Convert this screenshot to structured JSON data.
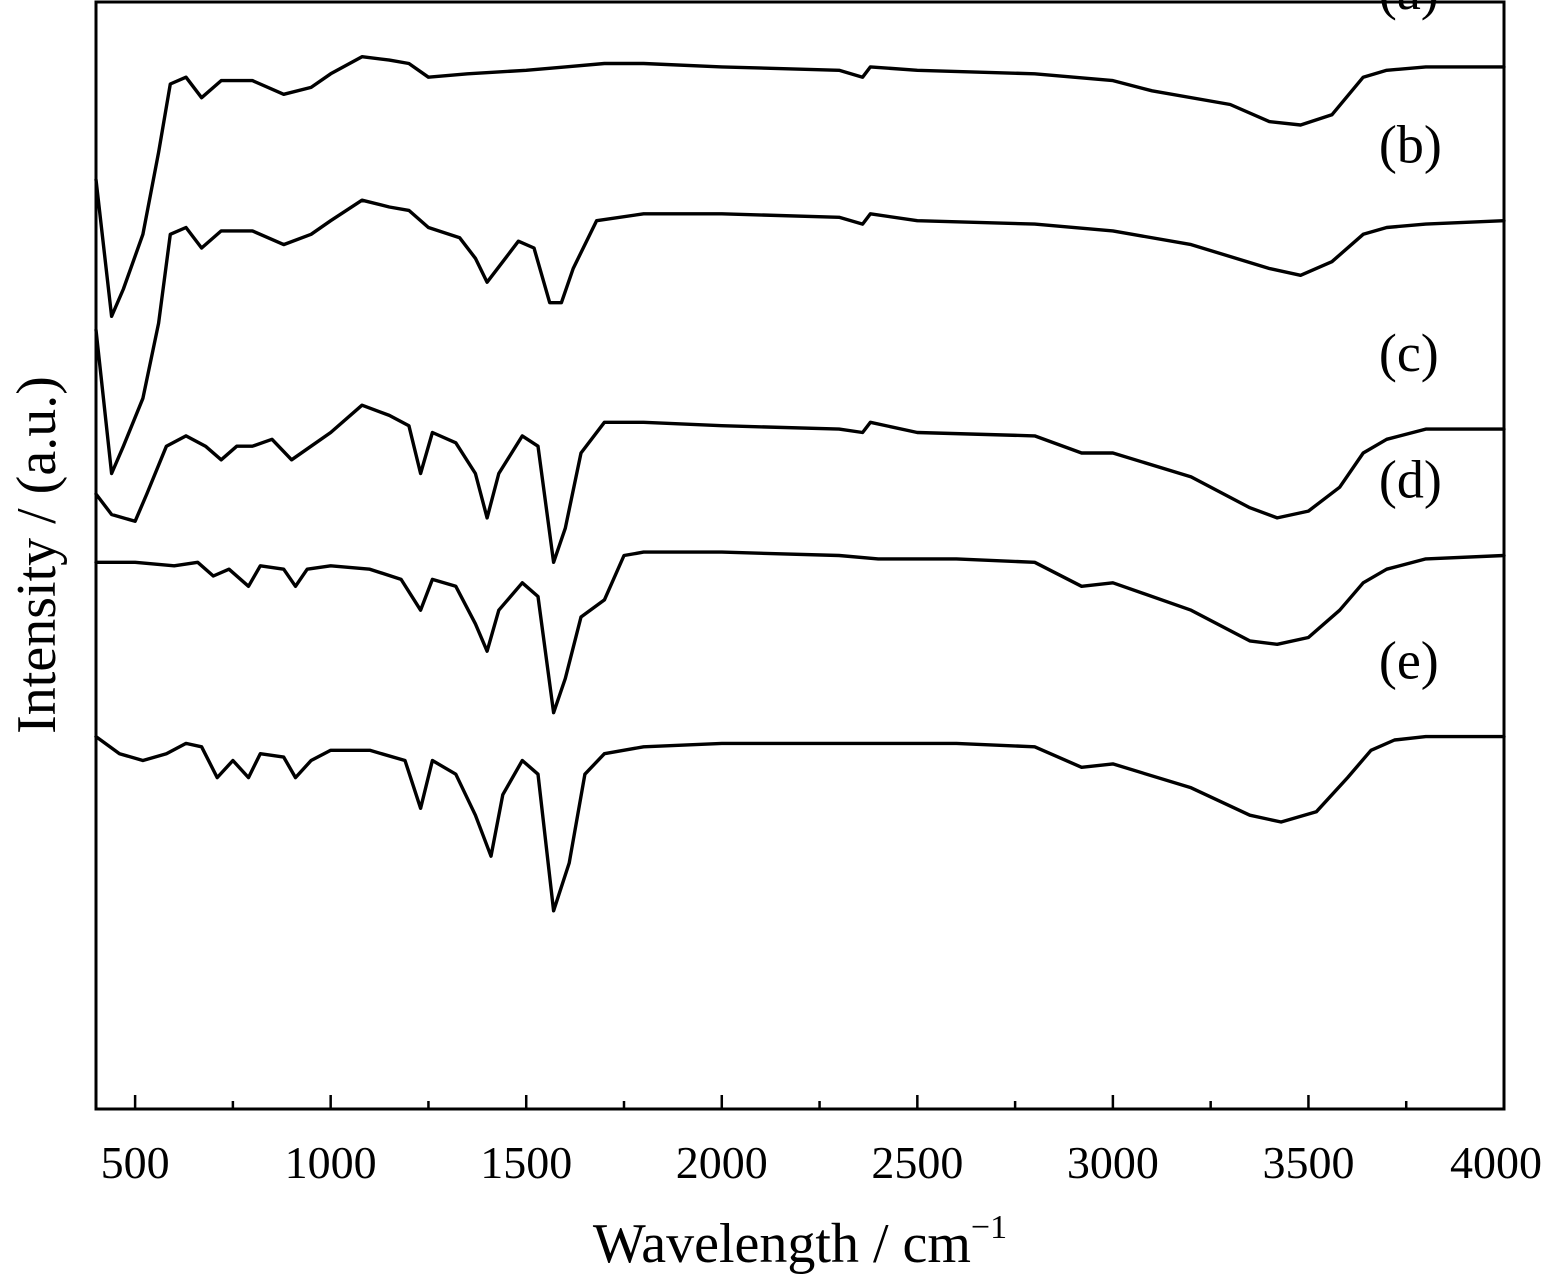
{
  "chart_data": {
    "type": "line",
    "xlabel": "Wavelength / cm",
    "xlabel_sup": "−1",
    "ylabel": "Intensity / (a.u.)",
    "xlim": [
      400,
      4000
    ],
    "ylim": [
      -16.2,
      0
    ],
    "x_ticks": [
      500,
      1000,
      1500,
      2000,
      2500,
      3000,
      3500,
      4000
    ],
    "x_tick_labels": [
      "500",
      "1000",
      "1500",
      "2000",
      "2500",
      "3000",
      "3500",
      "4000"
    ],
    "x_minor_ticks": [
      750,
      1250,
      1750,
      2250,
      2750,
      3250,
      3750
    ],
    "y_ticks_visible": false,
    "grid": false,
    "legend": "none",
    "color": "#000000",
    "series": [
      {
        "name": "(a)",
        "points": [
          [
            400,
            -2.6
          ],
          [
            440,
            -4.6
          ],
          [
            470,
            -4.2
          ],
          [
            520,
            -3.4
          ],
          [
            560,
            -2.2
          ],
          [
            590,
            -1.2
          ],
          [
            630,
            -1.1
          ],
          [
            670,
            -1.4
          ],
          [
            720,
            -1.15
          ],
          [
            800,
            -1.15
          ],
          [
            880,
            -1.35
          ],
          [
            950,
            -1.25
          ],
          [
            1000,
            -1.05
          ],
          [
            1080,
            -0.8
          ],
          [
            1150,
            -0.85
          ],
          [
            1200,
            -0.9
          ],
          [
            1250,
            -1.1
          ],
          [
            1350,
            -1.05
          ],
          [
            1500,
            -1.0
          ],
          [
            1600,
            -0.95
          ],
          [
            1700,
            -0.9
          ],
          [
            1800,
            -0.9
          ],
          [
            2000,
            -0.95
          ],
          [
            2300,
            -1.0
          ],
          [
            2360,
            -1.1
          ],
          [
            2380,
            -0.95
          ],
          [
            2500,
            -1.0
          ],
          [
            2800,
            -1.05
          ],
          [
            3000,
            -1.15
          ],
          [
            3100,
            -1.3
          ],
          [
            3300,
            -1.5
          ],
          [
            3400,
            -1.75
          ],
          [
            3480,
            -1.8
          ],
          [
            3560,
            -1.65
          ],
          [
            3640,
            -1.1
          ],
          [
            3700,
            -1.0
          ],
          [
            3800,
            -0.95
          ],
          [
            4000,
            -0.95
          ]
        ]
      },
      {
        "name": "(b)",
        "points": [
          [
            400,
            -4.8
          ],
          [
            440,
            -6.9
          ],
          [
            470,
            -6.5
          ],
          [
            520,
            -5.8
          ],
          [
            560,
            -4.7
          ],
          [
            590,
            -3.4
          ],
          [
            630,
            -3.3
          ],
          [
            670,
            -3.6
          ],
          [
            720,
            -3.35
          ],
          [
            800,
            -3.35
          ],
          [
            880,
            -3.55
          ],
          [
            950,
            -3.4
          ],
          [
            1000,
            -3.2
          ],
          [
            1080,
            -2.9
          ],
          [
            1150,
            -3.0
          ],
          [
            1200,
            -3.05
          ],
          [
            1250,
            -3.3
          ],
          [
            1330,
            -3.45
          ],
          [
            1370,
            -3.75
          ],
          [
            1400,
            -4.1
          ],
          [
            1440,
            -3.8
          ],
          [
            1480,
            -3.5
          ],
          [
            1520,
            -3.6
          ],
          [
            1560,
            -4.4
          ],
          [
            1590,
            -4.4
          ],
          [
            1620,
            -3.9
          ],
          [
            1680,
            -3.2
          ],
          [
            1800,
            -3.1
          ],
          [
            2000,
            -3.1
          ],
          [
            2300,
            -3.15
          ],
          [
            2360,
            -3.25
          ],
          [
            2380,
            -3.1
          ],
          [
            2500,
            -3.2
          ],
          [
            2800,
            -3.25
          ],
          [
            3000,
            -3.35
          ],
          [
            3200,
            -3.55
          ],
          [
            3400,
            -3.9
          ],
          [
            3480,
            -4.0
          ],
          [
            3560,
            -3.8
          ],
          [
            3640,
            -3.4
          ],
          [
            3700,
            -3.3
          ],
          [
            3800,
            -3.25
          ],
          [
            4000,
            -3.2
          ]
        ]
      },
      {
        "name": "(c)",
        "points": [
          [
            400,
            -7.2
          ],
          [
            440,
            -7.5
          ],
          [
            500,
            -7.6
          ],
          [
            530,
            -7.2
          ],
          [
            580,
            -6.5
          ],
          [
            630,
            -6.35
          ],
          [
            680,
            -6.5
          ],
          [
            720,
            -6.7
          ],
          [
            760,
            -6.5
          ],
          [
            800,
            -6.5
          ],
          [
            850,
            -6.4
          ],
          [
            900,
            -6.7
          ],
          [
            950,
            -6.5
          ],
          [
            1000,
            -6.3
          ],
          [
            1080,
            -5.9
          ],
          [
            1150,
            -6.05
          ],
          [
            1200,
            -6.2
          ],
          [
            1230,
            -6.9
          ],
          [
            1260,
            -6.3
          ],
          [
            1320,
            -6.45
          ],
          [
            1370,
            -6.9
          ],
          [
            1400,
            -7.55
          ],
          [
            1430,
            -6.9
          ],
          [
            1490,
            -6.35
          ],
          [
            1530,
            -6.5
          ],
          [
            1570,
            -8.2
          ],
          [
            1600,
            -7.7
          ],
          [
            1640,
            -6.6
          ],
          [
            1700,
            -6.15
          ],
          [
            1800,
            -6.15
          ],
          [
            2000,
            -6.2
          ],
          [
            2300,
            -6.25
          ],
          [
            2360,
            -6.3
          ],
          [
            2380,
            -6.15
          ],
          [
            2500,
            -6.3
          ],
          [
            2800,
            -6.35
          ],
          [
            2920,
            -6.6
          ],
          [
            3000,
            -6.6
          ],
          [
            3200,
            -6.95
          ],
          [
            3350,
            -7.4
          ],
          [
            3420,
            -7.55
          ],
          [
            3500,
            -7.45
          ],
          [
            3580,
            -7.1
          ],
          [
            3640,
            -6.6
          ],
          [
            3700,
            -6.4
          ],
          [
            3800,
            -6.25
          ],
          [
            4000,
            -6.25
          ]
        ]
      },
      {
        "name": "(d)",
        "points": [
          [
            400,
            -8.2
          ],
          [
            500,
            -8.2
          ],
          [
            600,
            -8.25
          ],
          [
            660,
            -8.2
          ],
          [
            700,
            -8.4
          ],
          [
            740,
            -8.3
          ],
          [
            790,
            -8.55
          ],
          [
            820,
            -8.25
          ],
          [
            880,
            -8.3
          ],
          [
            910,
            -8.55
          ],
          [
            940,
            -8.3
          ],
          [
            1000,
            -8.25
          ],
          [
            1100,
            -8.3
          ],
          [
            1180,
            -8.45
          ],
          [
            1230,
            -8.9
          ],
          [
            1260,
            -8.45
          ],
          [
            1320,
            -8.55
          ],
          [
            1370,
            -9.1
          ],
          [
            1400,
            -9.5
          ],
          [
            1430,
            -8.9
          ],
          [
            1490,
            -8.5
          ],
          [
            1530,
            -8.7
          ],
          [
            1570,
            -10.4
          ],
          [
            1600,
            -9.9
          ],
          [
            1640,
            -9.0
          ],
          [
            1700,
            -8.75
          ],
          [
            1750,
            -8.1
          ],
          [
            1800,
            -8.05
          ],
          [
            2000,
            -8.05
          ],
          [
            2300,
            -8.1
          ],
          [
            2400,
            -8.15
          ],
          [
            2600,
            -8.15
          ],
          [
            2800,
            -8.2
          ],
          [
            2920,
            -8.55
          ],
          [
            3000,
            -8.5
          ],
          [
            3200,
            -8.9
          ],
          [
            3350,
            -9.35
          ],
          [
            3420,
            -9.4
          ],
          [
            3500,
            -9.3
          ],
          [
            3580,
            -8.9
          ],
          [
            3640,
            -8.5
          ],
          [
            3700,
            -8.3
          ],
          [
            3800,
            -8.15
          ],
          [
            4000,
            -8.1
          ]
        ]
      },
      {
        "name": "(e)",
        "points": [
          [
            400,
            -10.75
          ],
          [
            460,
            -11.0
          ],
          [
            520,
            -11.1
          ],
          [
            580,
            -11.0
          ],
          [
            630,
            -10.85
          ],
          [
            670,
            -10.9
          ],
          [
            710,
            -11.35
          ],
          [
            750,
            -11.1
          ],
          [
            790,
            -11.35
          ],
          [
            820,
            -11.0
          ],
          [
            880,
            -11.05
          ],
          [
            910,
            -11.35
          ],
          [
            950,
            -11.1
          ],
          [
            1000,
            -10.95
          ],
          [
            1100,
            -10.95
          ],
          [
            1190,
            -11.1
          ],
          [
            1230,
            -11.8
          ],
          [
            1260,
            -11.1
          ],
          [
            1320,
            -11.3
          ],
          [
            1370,
            -11.9
          ],
          [
            1410,
            -12.5
          ],
          [
            1440,
            -11.6
          ],
          [
            1490,
            -11.1
          ],
          [
            1530,
            -11.3
          ],
          [
            1570,
            -13.3
          ],
          [
            1610,
            -12.6
          ],
          [
            1650,
            -11.3
          ],
          [
            1700,
            -11.0
          ],
          [
            1800,
            -10.9
          ],
          [
            2000,
            -10.85
          ],
          [
            2300,
            -10.85
          ],
          [
            2600,
            -10.85
          ],
          [
            2800,
            -10.9
          ],
          [
            2920,
            -11.2
          ],
          [
            3000,
            -11.15
          ],
          [
            3200,
            -11.5
          ],
          [
            3350,
            -11.9
          ],
          [
            3430,
            -12.0
          ],
          [
            3520,
            -11.85
          ],
          [
            3600,
            -11.35
          ],
          [
            3660,
            -10.95
          ],
          [
            3720,
            -10.8
          ],
          [
            3800,
            -10.75
          ],
          [
            4000,
            -10.75
          ]
        ]
      }
    ]
  }
}
